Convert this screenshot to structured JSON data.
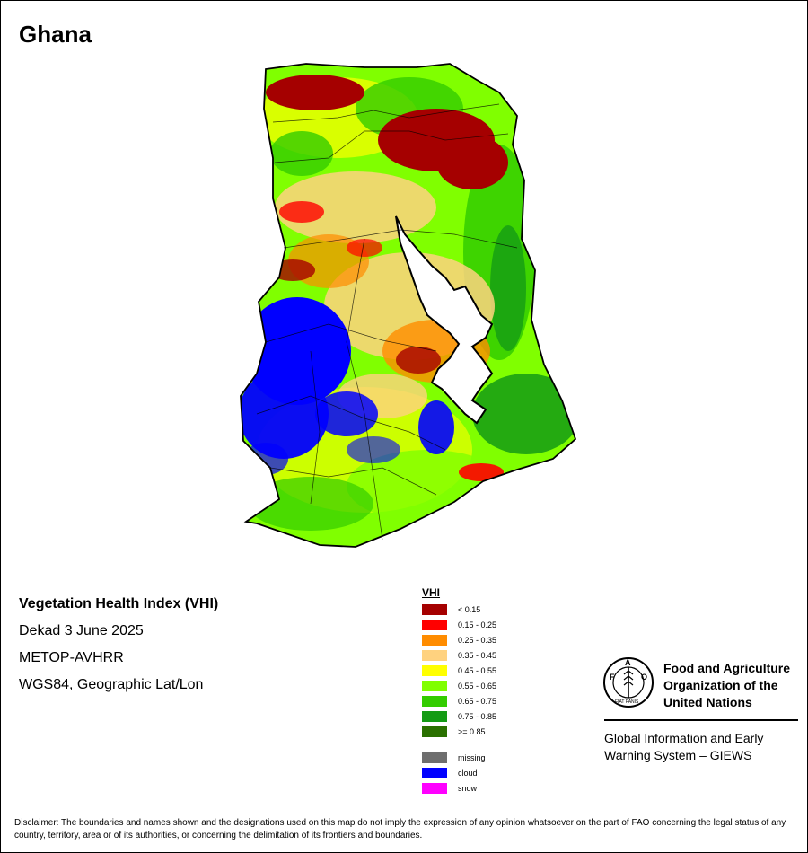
{
  "map_title": "Ghana",
  "product": {
    "name": "Vegetation Health Index (VHI)",
    "period": "Dekad 3 June 2025",
    "sensor": "METOP-AVHRR",
    "projection": "WGS84, Geographic Lat/Lon"
  },
  "legend": {
    "title": "VHI",
    "classes": [
      {
        "label": "< 0.15",
        "color": "#a50000"
      },
      {
        "label": "0.15 - 0.25",
        "color": "#ff0000"
      },
      {
        "label": "0.25 - 0.35",
        "color": "#ff8c00"
      },
      {
        "label": "0.35 - 0.45",
        "color": "#ffd27f"
      },
      {
        "label": "0.45 - 0.55",
        "color": "#ffff00"
      },
      {
        "label": "0.55 - 0.65",
        "color": "#80ff00"
      },
      {
        "label": "0.65 - 0.75",
        "color": "#33cc00"
      },
      {
        "label": "0.75 - 0.85",
        "color": "#149b14"
      },
      {
        "label": ">= 0.85",
        "color": "#2a7000"
      }
    ],
    "special": [
      {
        "label": "missing",
        "color": "#6e6e6e"
      },
      {
        "label": "cloud",
        "color": "#0000ff"
      },
      {
        "label": "snow",
        "color": "#ff00ff"
      }
    ]
  },
  "organization": {
    "name_lines": [
      "Food and Agriculture",
      "Organization of the",
      "United Nations"
    ],
    "logo_text": "FAO",
    "logo_motto": "FIAT PANIS",
    "system_lines": [
      "Global Information and Early",
      "Warning System – GIEWS"
    ]
  },
  "disclaimer": "Disclaimer: The boundaries and names shown and the designations used on this map do not imply the expression of any opinion whatsoever on the part of FAO concerning the legal status of any country, territory, area or of its authorities, or concerning the delimitation of its frontiers and boundaries."
}
